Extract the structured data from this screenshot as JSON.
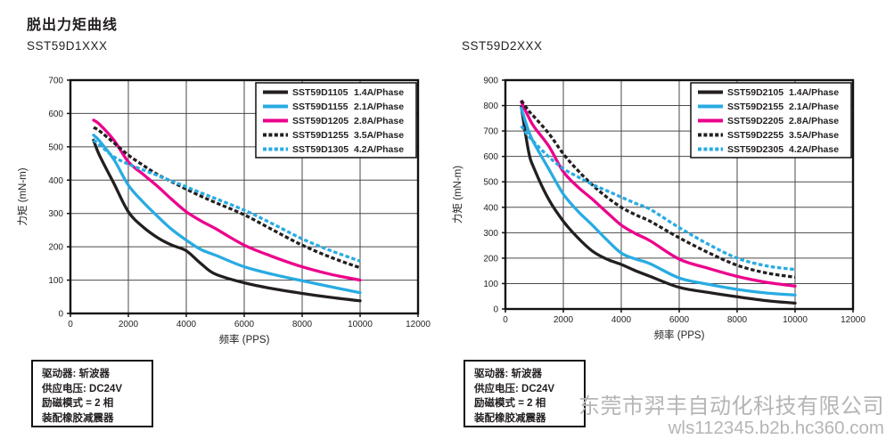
{
  "page": {
    "title": "脱出力矩曲线",
    "left_subtitle": "SST59D1XXX",
    "right_subtitle": "SST59D2XXX",
    "watermark": {
      "line1": "东莞市羿丰自动化科技有限公司",
      "line2": "wls112345.b2b.hc360.com",
      "color": "#b5b5b5"
    }
  },
  "info_box": {
    "lines": [
      "驱动器: 斩波器",
      "供应电压: DC24V",
      "励磁模式 = 2 相",
      "装配橡胶减震器"
    ]
  },
  "colors": {
    "black": "#231f20",
    "cyan": "#29abe2",
    "magenta": "#ec008c",
    "grid": "#4a4a4a",
    "watermark": "#b5b5b5"
  },
  "chart_data": [
    {
      "type": "line",
      "title": "SST59D1XXX",
      "xlabel": "频率 (PPS)",
      "ylabel": "力矩 (mN-m)",
      "xlim": [
        0,
        12000
      ],
      "ylim": [
        0,
        700
      ],
      "xticks": [
        0,
        2000,
        4000,
        6000,
        8000,
        10000,
        12000
      ],
      "yticks": [
        0,
        100,
        200,
        300,
        400,
        500,
        600,
        700
      ],
      "grid": true,
      "legend_position": "top-right",
      "x": [
        800,
        1000,
        1500,
        2000,
        2500,
        3000,
        3500,
        4000,
        4500,
        5000,
        6000,
        7000,
        8000,
        9000,
        10000
      ],
      "series": [
        {
          "name": "SST59D1105",
          "label": "1.4A/Phase",
          "color": "black",
          "dashed": false,
          "values": [
            520,
            475,
            390,
            305,
            260,
            228,
            205,
            188,
            150,
            118,
            92,
            74,
            60,
            48,
            38
          ]
        },
        {
          "name": "SST59D1155",
          "label": "2.1A/Phase",
          "color": "cyan",
          "dashed": false,
          "values": [
            535,
            518,
            462,
            385,
            335,
            292,
            252,
            220,
            192,
            175,
            140,
            117,
            98,
            80,
            62
          ]
        },
        {
          "name": "SST59D1205",
          "label": "2.8A/Phase",
          "color": "magenta",
          "dashed": false,
          "values": [
            580,
            568,
            520,
            455,
            418,
            382,
            342,
            305,
            278,
            255,
            205,
            170,
            140,
            117,
            100
          ]
        },
        {
          "name": "SST59D1255",
          "label": "3.5A/Phase",
          "color": "black",
          "dashed": true,
          "values": [
            558,
            548,
            512,
            475,
            445,
            417,
            395,
            373,
            352,
            333,
            296,
            250,
            205,
            168,
            137
          ]
        },
        {
          "name": "SST59D1305",
          "label": "4.2A/Phase",
          "color": "cyan",
          "dashed": true,
          "values": [
            520,
            506,
            470,
            448,
            431,
            414,
            397,
            380,
            362,
            345,
            310,
            268,
            224,
            188,
            157
          ]
        }
      ]
    },
    {
      "type": "line",
      "title": "SST59D2XXX",
      "xlabel": "频率 (PPS)",
      "ylabel": "力矩 (mN-m)",
      "xlim": [
        0,
        12000
      ],
      "ylim": [
        0,
        900
      ],
      "xticks": [
        0,
        2000,
        4000,
        6000,
        8000,
        10000,
        12000
      ],
      "yticks": [
        0,
        100,
        200,
        300,
        400,
        500,
        600,
        700,
        800,
        900
      ],
      "grid": true,
      "legend_position": "top-right",
      "x": [
        550,
        800,
        1000,
        1500,
        2000,
        2500,
        3000,
        3500,
        4000,
        4500,
        5000,
        6000,
        7000,
        8000,
        9000,
        10000
      ],
      "series": [
        {
          "name": "SST59D2105",
          "label": "1.4A/Phase",
          "color": "black",
          "dashed": false,
          "values": [
            795,
            620,
            550,
            430,
            345,
            280,
            228,
            196,
            175,
            150,
            128,
            85,
            65,
            48,
            33,
            23
          ]
        },
        {
          "name": "SST59D2155",
          "label": "2.1A/Phase",
          "color": "cyan",
          "dashed": false,
          "values": [
            790,
            700,
            650,
            550,
            452,
            385,
            330,
            272,
            220,
            196,
            178,
            122,
            97,
            77,
            63,
            55
          ]
        },
        {
          "name": "SST59D2205",
          "label": "2.8A/Phase",
          "color": "magenta",
          "dashed": false,
          "values": [
            815,
            755,
            715,
            640,
            540,
            480,
            432,
            380,
            330,
            296,
            268,
            196,
            160,
            128,
            105,
            90
          ]
        },
        {
          "name": "SST59D2255",
          "label": "3.5A/Phase",
          "color": "black",
          "dashed": true,
          "values": [
            820,
            780,
            755,
            690,
            610,
            545,
            488,
            440,
            400,
            370,
            345,
            280,
            222,
            172,
            142,
            125
          ]
        },
        {
          "name": "SST59D2305",
          "label": "4.2A/Phase",
          "color": "cyan",
          "dashed": true,
          "values": [
            720,
            680,
            655,
            598,
            552,
            520,
            490,
            465,
            440,
            415,
            392,
            320,
            255,
            200,
            170,
            155
          ]
        }
      ]
    }
  ]
}
